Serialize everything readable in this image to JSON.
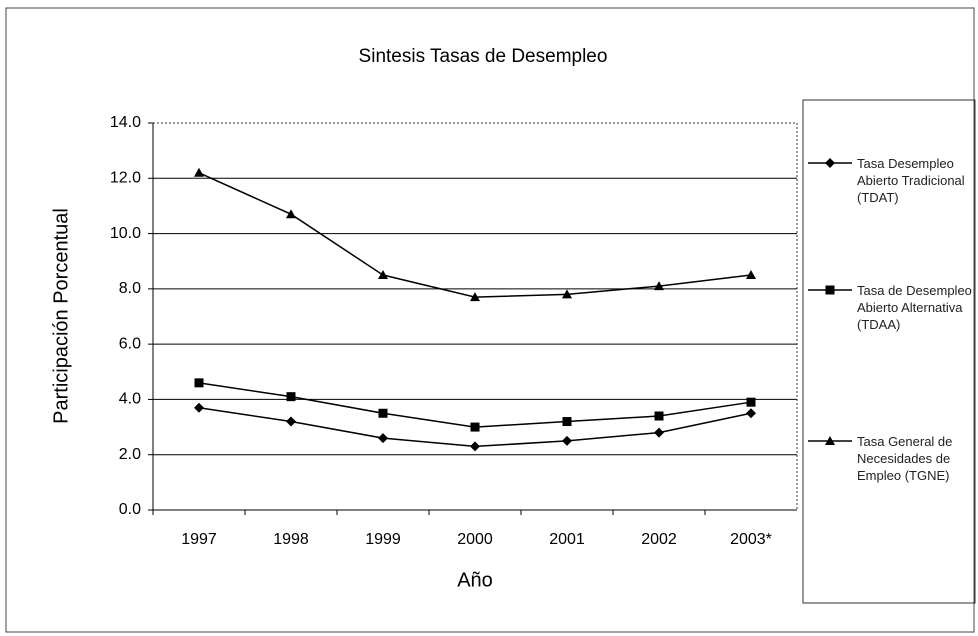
{
  "chart_data": {
    "type": "line",
    "title": "Sintesis Tasas de Desempleo",
    "x_label": "Año",
    "y_label": "Participación Porcentual",
    "categories": [
      "1997",
      "1998",
      "1999",
      "2000",
      "2001",
      "2002",
      "2003*"
    ],
    "series": [
      {
        "name": "Tasa Desempleo Abierto Tradicional (TDAT)",
        "color": "#000000",
        "marker": "diamond",
        "values": [
          3.7,
          3.2,
          2.6,
          2.3,
          2.5,
          2.8,
          3.5
        ]
      },
      {
        "name": "Tasa de Desempleo Abierto Alternativa (TDAA)",
        "color": "#000000",
        "marker": "square",
        "values": [
          4.6,
          4.1,
          3.5,
          3.0,
          3.2,
          3.4,
          3.9
        ]
      },
      {
        "name": "Tasa General de Necesidades de Empleo (TGNE)",
        "color": "#000000",
        "marker": "triangle",
        "values": [
          12.2,
          10.7,
          8.5,
          7.7,
          7.8,
          8.1,
          8.5
        ]
      }
    ],
    "ylim": [
      0,
      14
    ],
    "yticks": [
      {
        "value": 0,
        "label": "0.0"
      },
      {
        "value": 2,
        "label": "2.0"
      },
      {
        "value": 4,
        "label": "4.0"
      },
      {
        "value": 6,
        "label": "6.0"
      },
      {
        "value": 8,
        "label": "8.0"
      },
      {
        "value": 10,
        "label": "10.0"
      },
      {
        "value": 12,
        "label": "12.0"
      },
      {
        "value": 14,
        "label": "14.0"
      }
    ],
    "grid": true
  }
}
